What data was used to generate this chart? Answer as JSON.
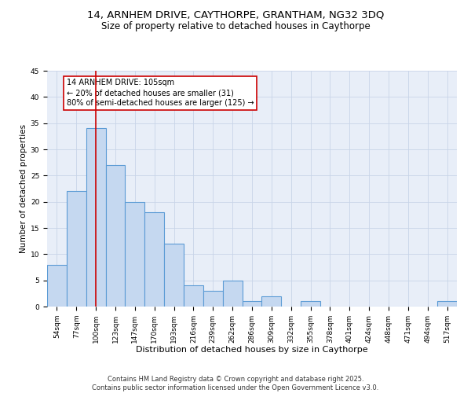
{
  "title_line1": "14, ARNHEM DRIVE, CAYTHORPE, GRANTHAM, NG32 3DQ",
  "title_line2": "Size of property relative to detached houses in Caythorpe",
  "xlabel": "Distribution of detached houses by size in Caythorpe",
  "ylabel": "Number of detached properties",
  "categories": [
    "54sqm",
    "77sqm",
    "100sqm",
    "123sqm",
    "147sqm",
    "170sqm",
    "193sqm",
    "216sqm",
    "239sqm",
    "262sqm",
    "286sqm",
    "309sqm",
    "332sqm",
    "355sqm",
    "378sqm",
    "401sqm",
    "424sqm",
    "448sqm",
    "471sqm",
    "494sqm",
    "517sqm"
  ],
  "values": [
    8,
    22,
    34,
    27,
    20,
    18,
    12,
    4,
    3,
    5,
    1,
    2,
    0,
    1,
    0,
    0,
    0,
    0,
    0,
    0,
    1
  ],
  "bar_color": "#c5d8f0",
  "bar_edge_color": "#5b9bd5",
  "bar_edge_width": 0.8,
  "vertical_line_x": 2,
  "vertical_line_color": "#cc0000",
  "annotation_text": "14 ARNHEM DRIVE: 105sqm\n← 20% of detached houses are smaller (31)\n80% of semi-detached houses are larger (125) →",
  "annotation_box_color": "#ffffff",
  "annotation_box_edge": "#cc0000",
  "ylim": [
    0,
    45
  ],
  "yticks": [
    0,
    5,
    10,
    15,
    20,
    25,
    30,
    35,
    40,
    45
  ],
  "grid_color": "#c8d4e8",
  "background_color": "#e8eef8",
  "footnote": "Contains HM Land Registry data © Crown copyright and database right 2025.\nContains public sector information licensed under the Open Government Licence v3.0.",
  "title_fontsize": 9.5,
  "subtitle_fontsize": 8.5,
  "xlabel_fontsize": 8,
  "ylabel_fontsize": 7.5,
  "tick_fontsize": 6.5,
  "annot_fontsize": 7,
  "footnote_fontsize": 6
}
